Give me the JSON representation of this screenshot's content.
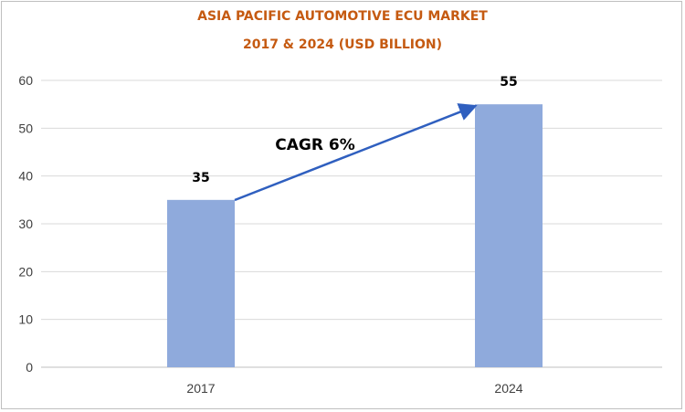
{
  "chart_data": {
    "type": "bar",
    "title_lines": [
      "ASIA PACIFIC AUTOMOTIVE ECU MARKET",
      "2017 & 2024 (USD BILLION)"
    ],
    "categories": [
      "2017",
      "2024"
    ],
    "values": [
      35,
      55
    ],
    "data_labels": [
      "35",
      "55"
    ],
    "xlabel": "",
    "ylabel": "",
    "ylim": [
      0,
      60
    ],
    "yticks": [
      0,
      10,
      20,
      30,
      40,
      50,
      60
    ],
    "grid": true,
    "annotation": "CAGR 6%",
    "colors": {
      "bar": "#8faadc",
      "title": "#c55a11",
      "arrow": "#2f5fbf",
      "grid": "#d9d9d9"
    }
  }
}
